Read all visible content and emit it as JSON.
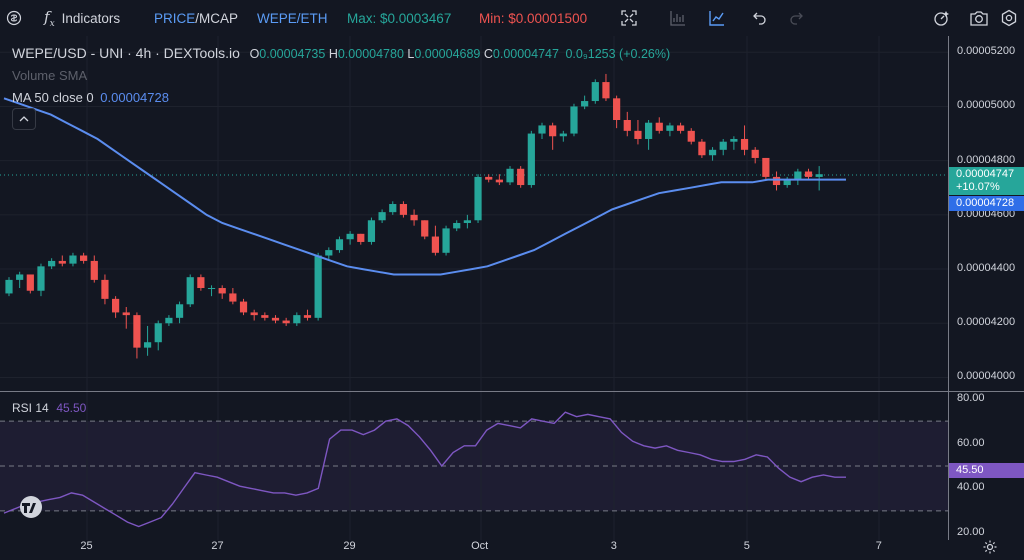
{
  "toolbar": {
    "indicators_label": "Indicators",
    "price_label": "PRICE",
    "mcap_label": "MCAP",
    "pair_label": "WEPE/ETH",
    "max_label": "Max: $0.0003467",
    "min_label": "Min: $0.00001500"
  },
  "legend": {
    "title": "WEPE/USD - UNI · 4h · DEXTools.io",
    "o_label": "O",
    "o_value": "0.00004735",
    "h_label": "H",
    "h_value": "0.00004780",
    "l_label": "L",
    "l_value": "0.00004689",
    "c_label": "C",
    "c_value": "0.00004747",
    "change": "0.0₉1253 (+0.26%)",
    "volume": "Volume SMA",
    "ma_label": "MA 50 close 0",
    "ma_value": "0.00004728",
    "rsi_label": "RSI 14",
    "rsi_value": "45.50"
  },
  "price_axis": {
    "labels": [
      "0.00005200",
      "0.00005000",
      "0.00004800",
      "0.00004600",
      "0.00004400",
      "0.00004200",
      "0.00004000"
    ],
    "current_price": "0.00004747",
    "current_change": "+10.07%",
    "ma_price": "0.00004728"
  },
  "rsi_axis": {
    "labels": [
      "80.00",
      "60.00",
      "40.00",
      "20.00"
    ],
    "current": "45.50"
  },
  "time_axis": {
    "labels": [
      "25",
      "27",
      "29",
      "Oct",
      "3",
      "5",
      "7"
    ]
  },
  "colors": {
    "up": "#26a69a",
    "down": "#ef5350",
    "ma": "#5b8def",
    "rsi": "#7e57c2",
    "background": "#131722"
  },
  "chart_data": [
    {
      "type": "candlestick",
      "title": "WEPE/USD - UNI · 4h · DEXTools.io",
      "ylim": [
        3.95e-05,
        5.26e-05
      ],
      "candles": [
        [
          4.31e-05,
          4.37e-05,
          4.3e-05,
          4.36e-05
        ],
        [
          4.36e-05,
          4.39e-05,
          4.33e-05,
          4.38e-05
        ],
        [
          4.38e-05,
          4.38e-05,
          4.31e-05,
          4.32e-05
        ],
        [
          4.32e-05,
          4.42e-05,
          4.3e-05,
          4.41e-05
        ],
        [
          4.41e-05,
          4.44e-05,
          4.4e-05,
          4.43e-05
        ],
        [
          4.43e-05,
          4.45e-05,
          4.41e-05,
          4.42e-05
        ],
        [
          4.42e-05,
          4.46e-05,
          4.41e-05,
          4.45e-05
        ],
        [
          4.45e-05,
          4.46e-05,
          4.42e-05,
          4.43e-05
        ],
        [
          4.43e-05,
          4.45e-05,
          4.35e-05,
          4.36e-05
        ],
        [
          4.36e-05,
          4.38e-05,
          4.27e-05,
          4.29e-05
        ],
        [
          4.29e-05,
          4.3e-05,
          4.22e-05,
          4.24e-05
        ],
        [
          4.24e-05,
          4.26e-05,
          4.18e-05,
          4.23e-05
        ],
        [
          4.23e-05,
          4.24e-05,
          4.07e-05,
          4.11e-05
        ],
        [
          4.11e-05,
          4.19e-05,
          4.08e-05,
          4.13e-05
        ],
        [
          4.13e-05,
          4.21e-05,
          4.1e-05,
          4.2e-05
        ],
        [
          4.2e-05,
          4.23e-05,
          4.19e-05,
          4.22e-05
        ],
        [
          4.22e-05,
          4.28e-05,
          4.2e-05,
          4.27e-05
        ],
        [
          4.27e-05,
          4.38e-05,
          4.26e-05,
          4.37e-05
        ],
        [
          4.37e-05,
          4.38e-05,
          4.32e-05,
          4.33e-05
        ],
        [
          4.33e-05,
          4.34e-05,
          4.3e-05,
          4.33e-05
        ],
        [
          4.33e-05,
          4.34e-05,
          4.29e-05,
          4.31e-05
        ],
        [
          4.31e-05,
          4.33e-05,
          4.27e-05,
          4.28e-05
        ],
        [
          4.28e-05,
          4.29e-05,
          4.23e-05,
          4.24e-05
        ],
        [
          4.24e-05,
          4.25e-05,
          4.21e-05,
          4.23e-05
        ],
        [
          4.23e-05,
          4.24e-05,
          4.21e-05,
          4.22e-05
        ],
        [
          4.22e-05,
          4.23e-05,
          4.2e-05,
          4.21e-05
        ],
        [
          4.21e-05,
          4.22e-05,
          4.19e-05,
          4.2e-05
        ],
        [
          4.2e-05,
          4.24e-05,
          4.19e-05,
          4.23e-05
        ],
        [
          4.23e-05,
          4.25e-05,
          4.21e-05,
          4.22e-05
        ],
        [
          4.22e-05,
          4.46e-05,
          4.21e-05,
          4.45e-05
        ],
        [
          4.45e-05,
          4.48e-05,
          4.43e-05,
          4.47e-05
        ],
        [
          4.47e-05,
          4.52e-05,
          4.46e-05,
          4.51e-05
        ],
        [
          4.51e-05,
          4.54e-05,
          4.49e-05,
          4.53e-05
        ],
        [
          4.53e-05,
          4.53e-05,
          4.49e-05,
          4.5e-05
        ],
        [
          4.5e-05,
          4.59e-05,
          4.49e-05,
          4.58e-05
        ],
        [
          4.58e-05,
          4.62e-05,
          4.57e-05,
          4.61e-05
        ],
        [
          4.61e-05,
          4.65e-05,
          4.6e-05,
          4.64e-05
        ],
        [
          4.64e-05,
          4.65e-05,
          4.59e-05,
          4.6e-05
        ],
        [
          4.6e-05,
          4.62e-05,
          4.56e-05,
          4.58e-05
        ],
        [
          4.58e-05,
          4.58e-05,
          4.51e-05,
          4.52e-05
        ],
        [
          4.52e-05,
          4.56e-05,
          4.45e-05,
          4.46e-05
        ],
        [
          4.46e-05,
          4.56e-05,
          4.45e-05,
          4.55e-05
        ],
        [
          4.55e-05,
          4.58e-05,
          4.54e-05,
          4.57e-05
        ],
        [
          4.57e-05,
          4.6e-05,
          4.55e-05,
          4.58e-05
        ],
        [
          4.58e-05,
          4.75e-05,
          4.57e-05,
          4.74e-05
        ],
        [
          4.74e-05,
          4.75e-05,
          4.72e-05,
          4.73e-05
        ],
        [
          4.73e-05,
          4.75e-05,
          4.71e-05,
          4.72e-05
        ],
        [
          4.72e-05,
          4.78e-05,
          4.71e-05,
          4.77e-05
        ],
        [
          4.77e-05,
          4.78e-05,
          4.7e-05,
          4.71e-05
        ],
        [
          4.71e-05,
          4.91e-05,
          4.7e-05,
          4.9e-05
        ],
        [
          4.9e-05,
          4.94e-05,
          4.88e-05,
          4.93e-05
        ],
        [
          4.93e-05,
          4.94e-05,
          4.84e-05,
          4.89e-05
        ],
        [
          4.89e-05,
          4.91e-05,
          4.87e-05,
          4.9e-05
        ],
        [
          4.9e-05,
          5.01e-05,
          4.89e-05,
          5e-05
        ],
        [
          5e-05,
          5.04e-05,
          4.99e-05,
          5.02e-05
        ],
        [
          5.02e-05,
          5.1e-05,
          5.01e-05,
          5.09e-05
        ],
        [
          5.09e-05,
          5.12e-05,
          5.02e-05,
          5.03e-05
        ],
        [
          5.03e-05,
          5.04e-05,
          4.92e-05,
          4.95e-05
        ],
        [
          4.95e-05,
          4.98e-05,
          4.89e-05,
          4.91e-05
        ],
        [
          4.91e-05,
          4.95e-05,
          4.86e-05,
          4.88e-05
        ],
        [
          4.88e-05,
          4.95e-05,
          4.84e-05,
          4.94e-05
        ],
        [
          4.94e-05,
          4.96e-05,
          4.9e-05,
          4.91e-05
        ],
        [
          4.91e-05,
          4.94e-05,
          4.89e-05,
          4.93e-05
        ],
        [
          4.93e-05,
          4.94e-05,
          4.9e-05,
          4.91e-05
        ],
        [
          4.91e-05,
          4.92e-05,
          4.86e-05,
          4.87e-05
        ],
        [
          4.87e-05,
          4.88e-05,
          4.81e-05,
          4.82e-05
        ],
        [
          4.82e-05,
          4.85e-05,
          4.8e-05,
          4.84e-05
        ],
        [
          4.84e-05,
          4.88e-05,
          4.82e-05,
          4.87e-05
        ],
        [
          4.87e-05,
          4.89e-05,
          4.84e-05,
          4.88e-05
        ],
        [
          4.88e-05,
          4.93e-05,
          4.82e-05,
          4.84e-05
        ],
        [
          4.84e-05,
          4.85e-05,
          4.79e-05,
          4.81e-05
        ],
        [
          4.81e-05,
          4.81e-05,
          4.73e-05,
          4.74e-05
        ],
        [
          4.74e-05,
          4.76e-05,
          4.69e-05,
          4.71e-05
        ],
        [
          4.71e-05,
          4.74e-05,
          4.7e-05,
          4.73e-05
        ],
        [
          4.73e-05,
          4.77e-05,
          4.71e-05,
          4.76e-05
        ],
        [
          4.76e-05,
          4.77e-05,
          4.73e-05,
          4.74e-05
        ],
        [
          4.74e-05,
          4.78e-05,
          4.69e-05,
          4.75e-05
        ]
      ],
      "ma50": [
        5.03e-05,
        5.01e-05,
        4.99e-05,
        4.97e-05,
        4.94e-05,
        4.91e-05,
        4.88e-05,
        4.84e-05,
        4.8e-05,
        4.76e-05,
        4.72e-05,
        4.68e-05,
        4.64e-05,
        4.6e-05,
        4.57e-05,
        4.55e-05,
        4.53e-05,
        4.51e-05,
        4.49e-05,
        4.47e-05,
        4.45e-05,
        4.43e-05,
        4.41e-05,
        4.4e-05,
        4.39e-05,
        4.38e-05,
        4.38e-05,
        4.38e-05,
        4.38e-05,
        4.39e-05,
        4.4e-05,
        4.41e-05,
        4.43e-05,
        4.45e-05,
        4.47e-05,
        4.5e-05,
        4.53e-05,
        4.56e-05,
        4.59e-05,
        4.62e-05,
        4.64e-05,
        4.66e-05,
        4.68e-05,
        4.69e-05,
        4.7e-05,
        4.71e-05,
        4.72e-05,
        4.72e-05,
        4.72e-05,
        4.73e-05,
        4.73e-05,
        4.73e-05,
        4.73e-05,
        4.73e-05,
        4.73e-05
      ]
    },
    {
      "type": "line",
      "title": "RSI 14",
      "ylim": [
        17,
        83
      ],
      "levels": [
        70,
        50,
        30
      ],
      "values": [
        29,
        31,
        33,
        34,
        35,
        36,
        38,
        37,
        34,
        31,
        28,
        25,
        23,
        25,
        27,
        33,
        40,
        47,
        46,
        45,
        43,
        41,
        40,
        39,
        38,
        38,
        37,
        38,
        40,
        62,
        66,
        66,
        64,
        66,
        70,
        71,
        68,
        63,
        57,
        50,
        56,
        59,
        59,
        66,
        69,
        68,
        67,
        71,
        70,
        69,
        74,
        72,
        73,
        72,
        71,
        65,
        61,
        59,
        58,
        59,
        57,
        56,
        55,
        53,
        52,
        52,
        53,
        55,
        54,
        49,
        45,
        43,
        45,
        46,
        45,
        45
      ]
    }
  ]
}
